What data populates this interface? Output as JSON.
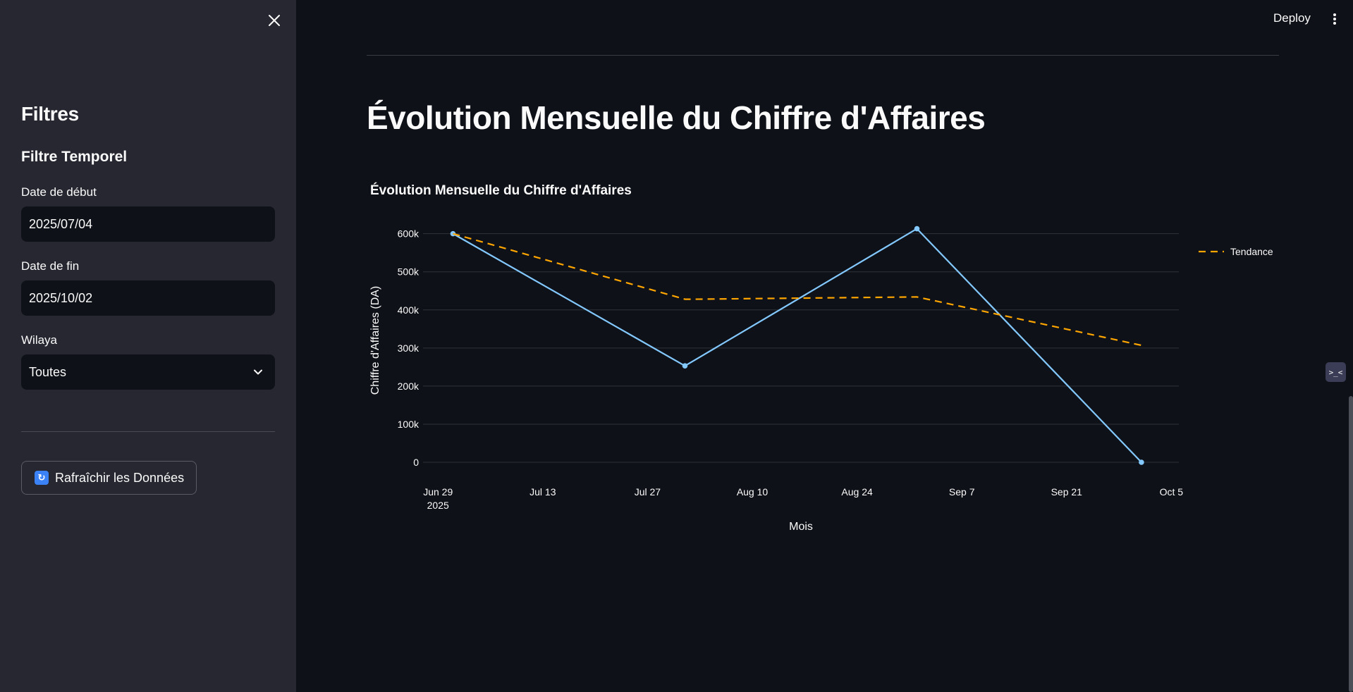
{
  "sidebar": {
    "title": "Filtres",
    "subtitle": "Filtre Temporel",
    "start_date": {
      "label": "Date de début",
      "value": "2025/07/04"
    },
    "end_date": {
      "label": "Date de fin",
      "value": "2025/10/02"
    },
    "wilaya": {
      "label": "Wilaya",
      "value": "Toutes"
    },
    "refresh_button": "Rafraîchir les Données"
  },
  "header": {
    "deploy_label": "Deploy"
  },
  "main": {
    "page_title": "Évolution Mensuelle du Chiffre d'Affaires"
  },
  "colors": {
    "background": "#0e1117",
    "sidebar": "#262730",
    "series": "#83c9ff",
    "trend": "#ffa500"
  },
  "chart_data": {
    "type": "line",
    "title": "Évolution Mensuelle du Chiffre d'Affaires",
    "xlabel": "Mois",
    "ylabel": "Chiffre d'Affaires (DA)",
    "x_ticks": [
      "Jun 29",
      "Jul 13",
      "Jul 27",
      "Aug 10",
      "Aug 24",
      "Sep 7",
      "Sep 21",
      "Oct 5"
    ],
    "x_tick_year": "2025",
    "y_ticks": [
      "0",
      "100k",
      "200k",
      "300k",
      "400k",
      "500k",
      "600k"
    ],
    "ylim": [
      0,
      640000
    ],
    "xlim": [
      "2025-06-27",
      "2025-10-06"
    ],
    "grid": true,
    "legend_position": "top-right",
    "series": [
      {
        "x": [
          "2025-07-01",
          "2025-08-01",
          "2025-09-01",
          "2025-10-01"
        ],
        "values": [
          600000,
          253000,
          613000,
          0
        ],
        "markers": true,
        "dash": "solid"
      },
      {
        "name": "Tendance",
        "x": [
          "2025-07-01",
          "2025-08-01",
          "2025-08-02",
          "2025-09-01",
          "2025-10-01"
        ],
        "values": [
          600000,
          428000,
          428000,
          434000,
          307000
        ],
        "markers": false,
        "dash": "dashed"
      }
    ]
  }
}
